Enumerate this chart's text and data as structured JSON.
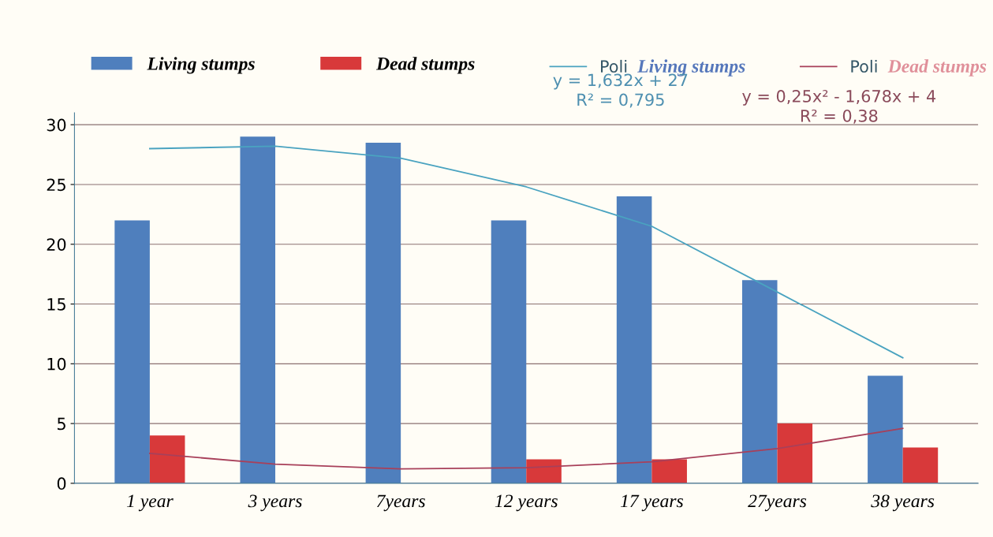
{
  "chart_data": {
    "type": "bar",
    "categories": [
      "1 year",
      "3 years",
      "7years",
      "12 years",
      "17 years",
      "27years",
      "38 years"
    ],
    "series": [
      {
        "name": "Living stumps",
        "color": "#4f7fbd",
        "values": [
          22,
          29,
          28.5,
          22,
          24,
          17,
          9
        ]
      },
      {
        "name": "Dead stumps",
        "color": "#d8393a",
        "values": [
          4,
          0,
          0,
          2,
          2,
          5,
          3
        ]
      },
      {
        "name": "Poli",
        "type": "line",
        "color": "#4aa3c0",
        "values": [
          28,
          28.2,
          27.2,
          24.8,
          21.5,
          16,
          10.5
        ]
      },
      {
        "name": "Poli",
        "type": "line",
        "color": "#a8405a",
        "values": [
          2.5,
          1.6,
          1.2,
          1.3,
          1.8,
          2.9,
          4.6
        ]
      }
    ],
    "annotations": [
      "Living stumps",
      "Dead stumps",
      "y = 1,632x + 27\nR² = 0,795",
      "y = 0,25x² - 1,678x + 4\nR² = 0,38"
    ],
    "ylim": [
      0,
      31
    ],
    "yticks": [
      0,
      5,
      10,
      15,
      20,
      25,
      30
    ],
    "grid": "y",
    "legend": "top"
  }
}
